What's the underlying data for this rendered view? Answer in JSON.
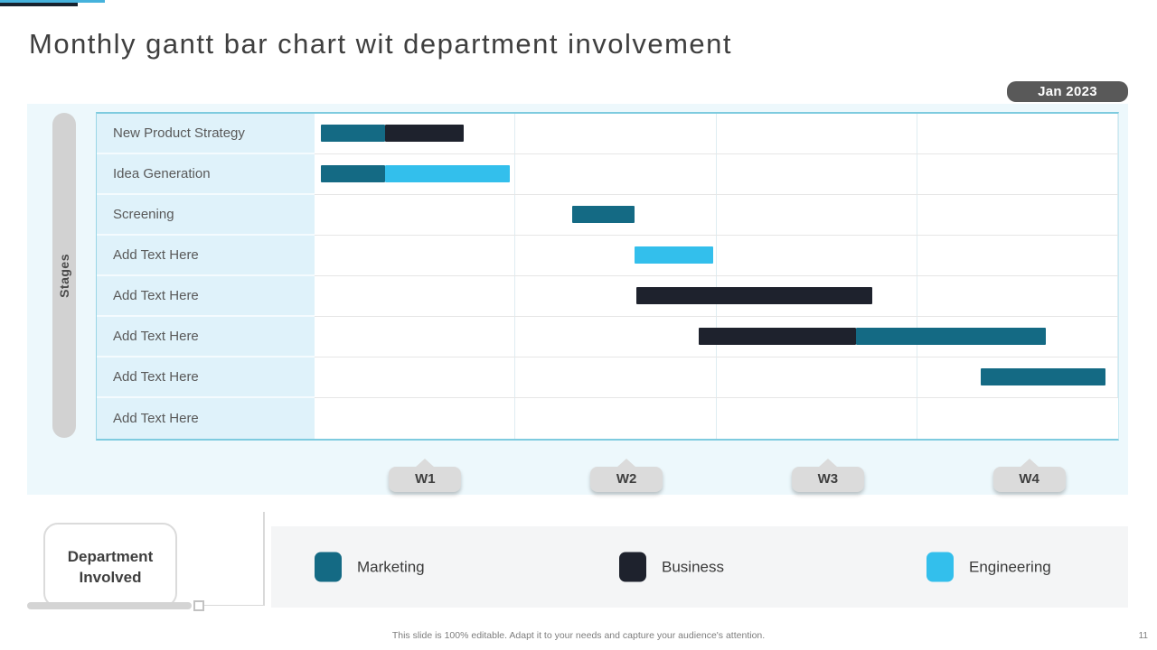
{
  "slide": {
    "title": "Monthly gantt bar chart wit department involvement",
    "date_badge": "Jan 2023",
    "footer_note": "This slide is 100% editable. Adapt it to your needs and capture your audience's attention.",
    "page_number": "11"
  },
  "legend": {
    "title": "Department Involved",
    "items": [
      {
        "label": "Marketing",
        "color": "#146A84"
      },
      {
        "label": "Business",
        "color": "#1E222D"
      },
      {
        "label": "Engineering",
        "color": "#33BFEC"
      }
    ]
  },
  "chart_data": {
    "type": "bar",
    "subtype": "gantt",
    "title": "Monthly gantt bar chart wit department involvement",
    "period": "Jan 2023",
    "y_axis_label": "Stages",
    "x_axis": {
      "unit": "week",
      "ticks": [
        "W1",
        "W2",
        "W3",
        "W4"
      ],
      "range": [
        0,
        4
      ]
    },
    "legend_position": "bottom",
    "rows": [
      {
        "task": "New Product Strategy",
        "segments": [
          {
            "department": "Marketing",
            "start": 0.03,
            "end": 0.35
          },
          {
            "department": "Business",
            "start": 0.35,
            "end": 0.74
          }
        ]
      },
      {
        "task": "Idea Generation",
        "segments": [
          {
            "department": "Marketing",
            "start": 0.03,
            "end": 0.35
          },
          {
            "department": "Engineering",
            "start": 0.35,
            "end": 0.97
          }
        ]
      },
      {
        "task": "Screening",
        "segments": [
          {
            "department": "Marketing",
            "start": 1.28,
            "end": 1.59
          }
        ]
      },
      {
        "task": "Add Text Here",
        "segments": [
          {
            "department": "Engineering",
            "start": 1.59,
            "end": 1.98
          }
        ]
      },
      {
        "task": "Add Text Here",
        "segments": [
          {
            "department": "Business",
            "start": 1.6,
            "end": 2.77
          }
        ]
      },
      {
        "task": "Add Text Here",
        "segments": [
          {
            "department": "Business",
            "start": 1.91,
            "end": 2.69
          },
          {
            "department": "Marketing",
            "start": 2.69,
            "end": 3.63
          }
        ]
      },
      {
        "task": "Add Text Here",
        "segments": [
          {
            "department": "Marketing",
            "start": 3.31,
            "end": 3.93
          }
        ]
      },
      {
        "task": "Add Text Here",
        "segments": []
      }
    ]
  }
}
